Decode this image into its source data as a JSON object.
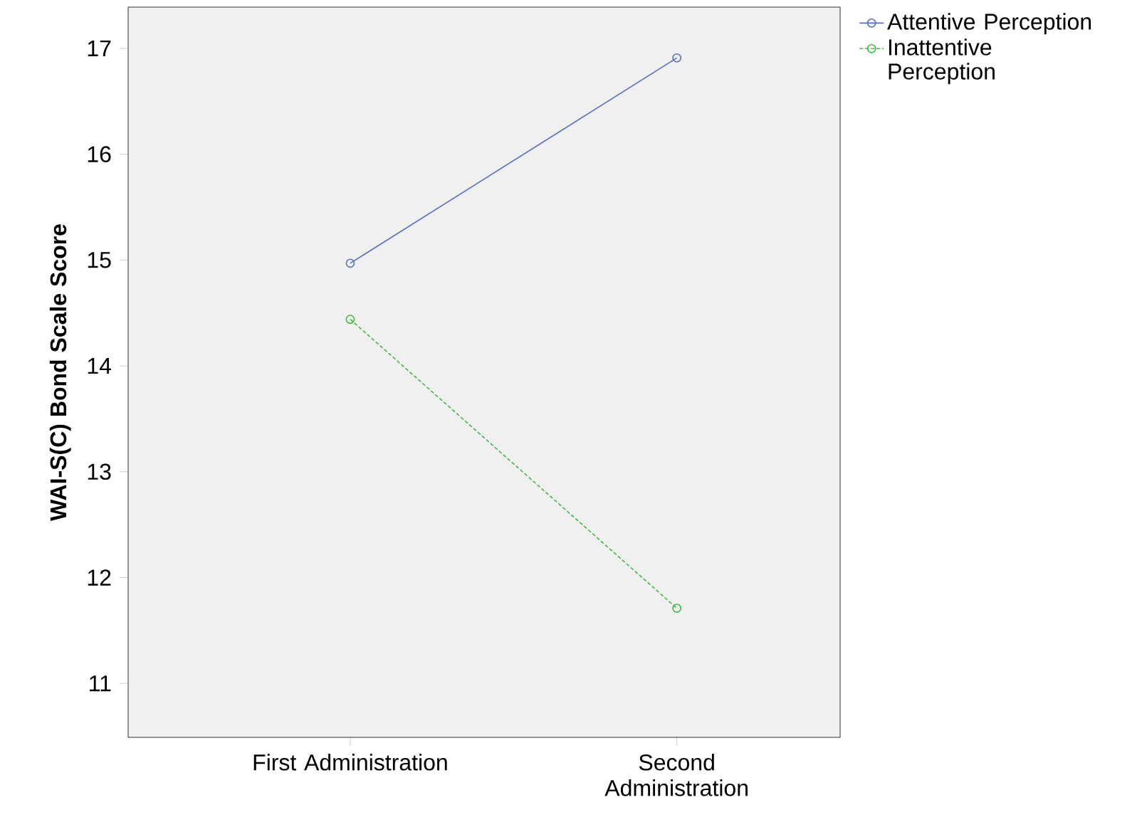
{
  "chart_data": {
    "type": "line",
    "ylabel": "WAI-S(C) Bond Scale Score",
    "categories": [
      "First Administration",
      "Second Administration"
    ],
    "series": [
      {
        "name": "Attentive Perception",
        "color": "#5a6fc2",
        "values": [
          14.97,
          16.91
        ],
        "line_style": "solid"
      },
      {
        "name": "Inattentive Perception",
        "color": "#3dbb3d",
        "values": [
          14.44,
          11.71
        ],
        "line_style": "dashed"
      }
    ],
    "ylim": [
      10.49,
      17.39
    ],
    "yticks": [
      11,
      12,
      13,
      14,
      15,
      16,
      17
    ],
    "marker": "circle",
    "legend": "right",
    "grid": false
  }
}
